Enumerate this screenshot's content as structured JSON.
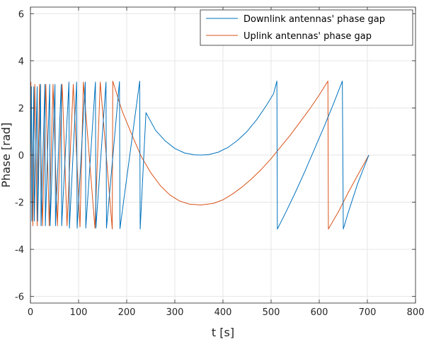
{
  "chart_data": {
    "type": "line",
    "xlabel": "t [s]",
    "ylabel": "Phase [rad]",
    "xlim": [
      0,
      800
    ],
    "ylim": [
      -6.28,
      6.28
    ],
    "x_ticks": [
      0,
      100,
      200,
      300,
      400,
      500,
      600,
      700,
      800
    ],
    "y_ticks": [
      -6,
      -4,
      -2,
      0,
      2,
      4,
      6
    ],
    "grid": true,
    "legend_position": "top-right",
    "series": [
      {
        "name": "Downlink antennas' phase gap",
        "color": "#0072BD",
        "points": [
          [
            0,
            0
          ],
          [
            2,
            2.9
          ],
          [
            3,
            -2.8
          ],
          [
            7,
            2.9
          ],
          [
            8,
            -2.8
          ],
          [
            14,
            2.9
          ],
          [
            15,
            -2.8
          ],
          [
            21,
            3.0
          ],
          [
            22,
            -3.0
          ],
          [
            30,
            3.0
          ],
          [
            31,
            -3.0
          ],
          [
            40,
            3.0
          ],
          [
            41,
            -3.0
          ],
          [
            51,
            3.0
          ],
          [
            52,
            -3.0
          ],
          [
            64,
            3.0
          ],
          [
            65,
            -3.0
          ],
          [
            80,
            3.1
          ],
          [
            81,
            -3.1
          ],
          [
            96,
            3.1
          ],
          [
            97,
            -3.1
          ],
          [
            114,
            3.1
          ],
          [
            115,
            -3.1
          ],
          [
            135,
            3.1
          ],
          [
            136,
            -3.1
          ],
          [
            157,
            3.1
          ],
          [
            158,
            -3.1
          ],
          [
            185,
            3.12
          ],
          [
            186,
            -3.12
          ],
          [
            227,
            3.14
          ],
          [
            228,
            -3.14
          ],
          [
            240,
            1.8
          ],
          [
            260,
            1.05
          ],
          [
            280,
            0.6
          ],
          [
            300,
            0.28
          ],
          [
            320,
            0.09
          ],
          [
            340,
            0.01
          ],
          [
            354,
            0.0
          ],
          [
            370,
            0.02
          ],
          [
            390,
            0.12
          ],
          [
            410,
            0.32
          ],
          [
            430,
            0.62
          ],
          [
            450,
            1.0
          ],
          [
            470,
            1.5
          ],
          [
            490,
            2.1
          ],
          [
            505,
            2.6
          ],
          [
            512,
            3.14
          ],
          [
            513,
            -3.14
          ],
          [
            530,
            -2.45
          ],
          [
            550,
            -1.6
          ],
          [
            570,
            -0.7
          ],
          [
            590,
            0.25
          ],
          [
            610,
            1.2
          ],
          [
            630,
            2.2
          ],
          [
            648,
            3.14
          ],
          [
            650,
            -3.14
          ],
          [
            660,
            -2.45
          ],
          [
            680,
            -1.2
          ],
          [
            703,
            0.0
          ]
        ]
      },
      {
        "name": "Uplink antennas' phase gap",
        "color": "#D95319",
        "points": [
          [
            0,
            -2.0
          ],
          [
            1,
            3.1
          ],
          [
            5,
            -3.0
          ],
          [
            9,
            3.0
          ],
          [
            14,
            -3.0
          ],
          [
            19,
            3.0
          ],
          [
            25,
            -3.0
          ],
          [
            32,
            3.0
          ],
          [
            39,
            -3.0
          ],
          [
            47,
            3.0
          ],
          [
            56,
            -3.0
          ],
          [
            66,
            3.0
          ],
          [
            76,
            -3.0
          ],
          [
            89,
            3.0
          ],
          [
            103,
            -3.05
          ],
          [
            110,
            3.1
          ],
          [
            134,
            -3.1
          ],
          [
            145,
            3.1
          ],
          [
            170,
            -3.14
          ],
          [
            171,
            3.14
          ],
          [
            190,
            1.9
          ],
          [
            210,
            0.9
          ],
          [
            230,
            -0.05
          ],
          [
            250,
            -0.75
          ],
          [
            270,
            -1.3
          ],
          [
            290,
            -1.7
          ],
          [
            310,
            -1.95
          ],
          [
            330,
            -2.08
          ],
          [
            354,
            -2.12
          ],
          [
            380,
            -2.05
          ],
          [
            400,
            -1.9
          ],
          [
            420,
            -1.65
          ],
          [
            440,
            -1.35
          ],
          [
            460,
            -1.0
          ],
          [
            480,
            -0.6
          ],
          [
            500,
            -0.15
          ],
          [
            520,
            0.35
          ],
          [
            540,
            0.85
          ],
          [
            560,
            1.4
          ],
          [
            580,
            1.95
          ],
          [
            600,
            2.55
          ],
          [
            618,
            3.14
          ],
          [
            619,
            -3.14
          ],
          [
            640,
            -2.4
          ],
          [
            660,
            -1.6
          ],
          [
            680,
            -0.85
          ],
          [
            703,
            0.0
          ]
        ]
      }
    ]
  }
}
